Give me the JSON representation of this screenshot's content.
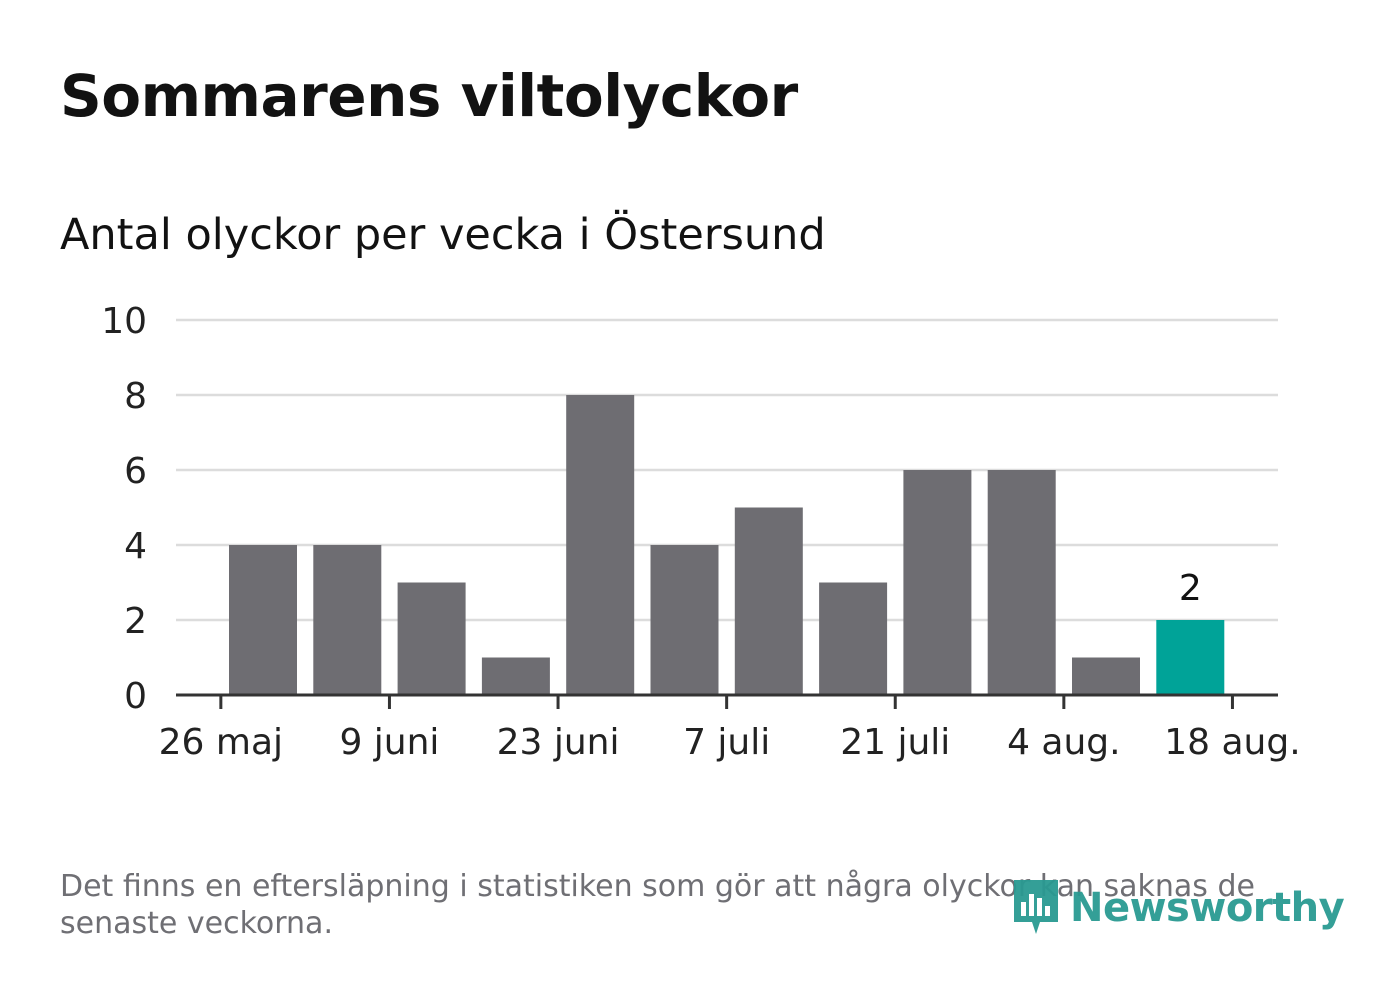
{
  "title": "Sommarens viltolyckor",
  "subtitle": "Antal olyckor per vecka i Östersund",
  "footnote": "Det finns en eftersläpning i statistiken som gör att några olyckor kan saknas de senaste veckorna.",
  "logo": {
    "text": "Newsworthy",
    "icon": "newsworthy-logo-icon"
  },
  "colors": {
    "bar": "#6e6d72",
    "highlight": "#00a398",
    "grid": "#dcdcdc",
    "axis": "#333333"
  },
  "chart_data": {
    "type": "bar",
    "title": "Sommarens viltolyckor",
    "subtitle": "Antal olyckor per vecka i Östersund",
    "ylim": [
      0,
      10
    ],
    "yticks": [
      0,
      2,
      4,
      6,
      8,
      10
    ],
    "x_tick_labels": [
      "26 maj",
      "9 juni",
      "23 juni",
      "7 juli",
      "21 juli",
      "4 aug.",
      "18 aug."
    ],
    "values": [
      4,
      4,
      3,
      1,
      8,
      4,
      5,
      3,
      6,
      6,
      1,
      2
    ],
    "highlight_index": 11,
    "data_labels": [
      {
        "index": 11,
        "text": "2"
      }
    ],
    "grid": true
  }
}
